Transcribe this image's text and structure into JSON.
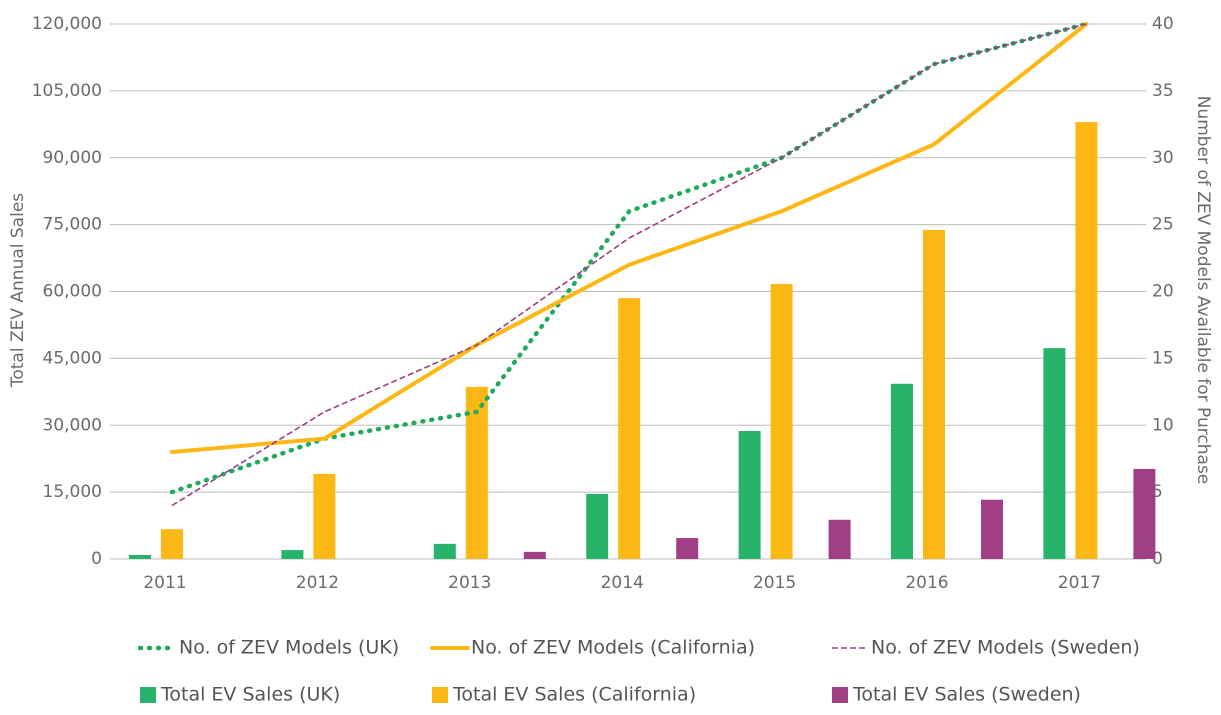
{
  "chart_data": {
    "type": "bar",
    "y_label": "Total ZEV Annual Sales",
    "y2_label": "Number of ZEV Models Available for Purchase",
    "categories": [
      "2011",
      "2012",
      "2013",
      "2014",
      "2015",
      "2016",
      "2017"
    ],
    "ylim": [
      0,
      120000
    ],
    "yticks": [
      0,
      {
        "value": 15000,
        "label": "15,000"
      },
      {
        "value": 30000,
        "label": "30,000"
      },
      {
        "value": 45000,
        "label": "45,000"
      },
      {
        "value": 60000,
        "label": "60,000"
      },
      {
        "value": 75000,
        "label": "75,000"
      },
      {
        "value": 90000,
        "label": "90,000"
      },
      {
        "value": 105000,
        "label": "105,000"
      },
      {
        "value": 120000,
        "label": "120,000"
      }
    ],
    "y2lim": [
      0,
      40
    ],
    "y2ticks": [
      0,
      5,
      10,
      15,
      20,
      25,
      30,
      35,
      40
    ],
    "grid": true,
    "series": [
      {
        "name": "No. of ZEV Models (UK)",
        "type": "line",
        "axis": "y2",
        "dash": "dotted",
        "color": "#21a95c",
        "values": [
          5,
          9,
          11,
          26,
          30,
          37,
          40
        ]
      },
      {
        "name": "No. of ZEV Models (California)",
        "type": "line",
        "axis": "y2",
        "dash": "solid",
        "color": "#fbb714",
        "values": [
          8,
          9,
          16,
          22,
          26,
          31,
          40
        ]
      },
      {
        "name": "No. of ZEV Models (Sweden)",
        "type": "line",
        "axis": "y2",
        "dash": "dashed",
        "color": "#9e3d82",
        "values": [
          4,
          11,
          16,
          24,
          30,
          37,
          40
        ]
      },
      {
        "name": "Total EV Sales (UK)",
        "type": "bar",
        "color": "#27b36a",
        "values": [
          900,
          2000,
          3400,
          14600,
          28700,
          39300,
          47300
        ]
      },
      {
        "name": "Total EV Sales (California)",
        "type": "bar",
        "color": "#fbb714",
        "values": [
          6700,
          19100,
          38600,
          58500,
          61700,
          73800,
          98000
        ]
      },
      {
        "name": "Total EV Sales (Sweden)",
        "type": "bar",
        "color": "#a03f86",
        "values": [
          null,
          null,
          1600,
          4700,
          8800,
          13300,
          20200
        ]
      }
    ]
  }
}
